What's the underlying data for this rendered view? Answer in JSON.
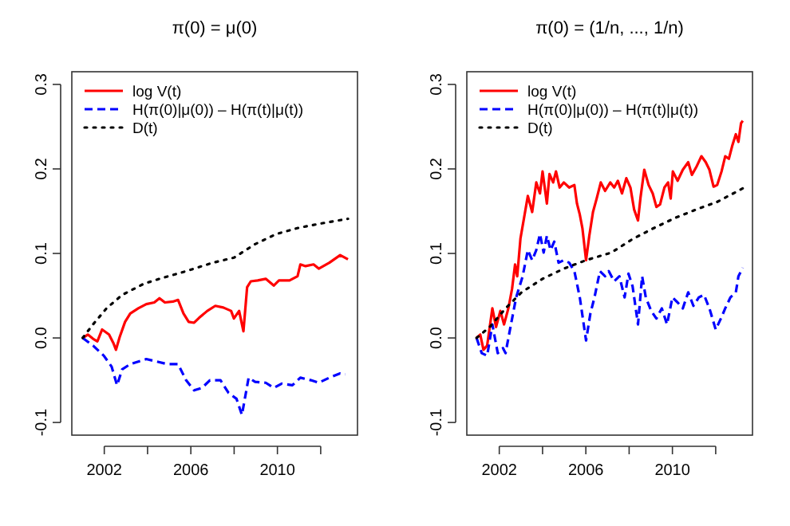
{
  "chart_data": [
    {
      "type": "line",
      "title": "π(0) = μ(0)",
      "xlim": [
        2000.5,
        2013.7
      ],
      "xticks": [
        2002,
        {
          "value": 2004,
          "label": null
        },
        2006,
        {
          "value": 2008,
          "label": null
        },
        2010,
        {
          "value": 2012,
          "label": null
        }
      ],
      "ylim": [
        -0.115,
        0.315
      ],
      "yticks": [
        -0.1,
        {
          "value": 0,
          "label": "0.0"
        },
        0.1,
        0.2,
        0.3
      ],
      "legend": "top left",
      "series": [
        {
          "name": "log V(t)",
          "color": "#ff0000",
          "line_style": "solid",
          "x": [
            2001.0,
            2001.24,
            2001.48,
            2001.68,
            2001.9,
            2002.22,
            2002.42,
            2002.54,
            2002.71,
            2002.96,
            2003.2,
            2003.57,
            2003.94,
            2004.31,
            2004.55,
            2004.8,
            2005.17,
            2005.41,
            2005.66,
            2005.9,
            2006.15,
            2006.39,
            2006.76,
            2007.13,
            2007.5,
            2007.86,
            2007.99,
            2008.23,
            2008.43,
            2008.6,
            2008.77,
            2009.09,
            2009.46,
            2009.83,
            2010.07,
            2010.56,
            2010.93,
            2011.06,
            2011.3,
            2011.67,
            2011.91,
            2012.4,
            2012.9,
            2013.26
          ],
          "values": [
            0,
            0.004,
            -0.001,
            -0.004,
            0.01,
            0.004,
            -0.006,
            -0.014,
            0.001,
            0.019,
            0.029,
            0.035,
            0.04,
            0.042,
            0.047,
            0.042,
            0.043,
            0.045,
            0.029,
            0.019,
            0.018,
            0.024,
            0.032,
            0.038,
            0.036,
            0.032,
            0.023,
            0.032,
            0.008,
            0.06,
            0.067,
            0.068,
            0.07,
            0.062,
            0.068,
            0.068,
            0.073,
            0.087,
            0.085,
            0.087,
            0.082,
            0.089,
            0.098,
            0.093
          ]
        },
        {
          "name": "H(π(0)|μ(0)) – H(π(t)|μ(t))",
          "color": "#0000ff",
          "line_style": "dashed",
          "x": [
            2001.0,
            2001.48,
            2001.98,
            2002.34,
            2002.59,
            2002.83,
            2003.2,
            2003.57,
            2003.94,
            2004.43,
            2004.92,
            2005.41,
            2005.78,
            2006.15,
            2006.52,
            2006.88,
            2007.37,
            2007.74,
            2008.11,
            2008.36,
            2008.67,
            2008.97,
            2009.46,
            2009.83,
            2010.2,
            2010.69,
            2011.06,
            2011.55,
            2011.91,
            2012.4,
            2012.9,
            2013.14
          ],
          "values": [
            0,
            -0.009,
            -0.021,
            -0.034,
            -0.056,
            -0.037,
            -0.031,
            -0.028,
            -0.025,
            -0.028,
            -0.031,
            -0.031,
            -0.05,
            -0.062,
            -0.059,
            -0.05,
            -0.05,
            -0.065,
            -0.072,
            -0.091,
            -0.047,
            -0.052,
            -0.053,
            -0.059,
            -0.054,
            -0.056,
            -0.047,
            -0.05,
            -0.053,
            -0.047,
            -0.042,
            -0.043
          ]
        },
        {
          "name": "D(t)",
          "color": "#000000",
          "line_style": "dotted",
          "x": [
            2001.0,
            2001.48,
            2002.1,
            2002.83,
            2003.82,
            2004.55,
            2005.78,
            2007.01,
            2007.99,
            2008.97,
            2009.95,
            2010.93,
            2011.91,
            2013.26
          ],
          "values": [
            0,
            0.016,
            0.035,
            0.051,
            0.064,
            0.07,
            0.079,
            0.089,
            0.095,
            0.111,
            0.123,
            0.13,
            0.135,
            0.141
          ]
        }
      ]
    },
    {
      "type": "line",
      "title": "π(0) = (1/n, ..., 1/n)",
      "xlim": [
        2000.5,
        2013.7
      ],
      "xticks": [
        2002,
        {
          "value": 2004,
          "label": null
        },
        2006,
        {
          "value": 2008,
          "label": null
        },
        2010,
        {
          "value": 2012,
          "label": null
        }
      ],
      "ylim": [
        -0.115,
        0.315
      ],
      "yticks": [
        -0.1,
        {
          "value": 0,
          "label": "0.0"
        },
        0.1,
        0.2,
        0.3
      ],
      "legend": "top left",
      "series": [
        {
          "name": "log V(t)",
          "color": "#ff0000",
          "line_style": "solid",
          "x": [
            2000.95,
            2001.12,
            2001.27,
            2001.44,
            2001.68,
            2001.85,
            2002.05,
            2002.22,
            2002.42,
            2002.59,
            2002.73,
            2002.83,
            2002.98,
            2003.15,
            2003.32,
            2003.52,
            2003.71,
            2003.88,
            2004.0,
            2004.2,
            2004.32,
            2004.49,
            2004.62,
            2004.79,
            2004.98,
            2005.23,
            2005.47,
            2005.59,
            2005.72,
            2005.84,
            2006.01,
            2006.16,
            2006.33,
            2006.5,
            2006.69,
            2006.89,
            2007.13,
            2007.31,
            2007.48,
            2007.67,
            2007.87,
            2008.06,
            2008.23,
            2008.41,
            2008.53,
            2008.7,
            2008.9,
            2009.09,
            2009.26,
            2009.43,
            2009.63,
            2009.8,
            2009.92,
            2010.02,
            2010.24,
            2010.48,
            2010.73,
            2010.9,
            2011.1,
            2011.34,
            2011.54,
            2011.71,
            2011.9,
            2012.07,
            2012.27,
            2012.44,
            2012.61,
            2012.76,
            2012.93,
            2013.05,
            2013.17,
            2013.25
          ],
          "values": [
            0,
            0.004,
            -0.014,
            -0.009,
            0.035,
            0.013,
            0.032,
            0.016,
            0.035,
            0.058,
            0.087,
            0.073,
            0.118,
            0.143,
            0.168,
            0.149,
            0.184,
            0.171,
            0.197,
            0.159,
            0.194,
            0.184,
            0.197,
            0.178,
            0.184,
            0.178,
            0.181,
            0.159,
            0.146,
            0.13,
            0.092,
            0.121,
            0.149,
            0.165,
            0.184,
            0.174,
            0.184,
            0.178,
            0.186,
            0.171,
            0.189,
            0.178,
            0.152,
            0.139,
            0.167,
            0.199,
            0.181,
            0.171,
            0.155,
            0.158,
            0.178,
            0.184,
            0.165,
            0.197,
            0.186,
            0.199,
            0.208,
            0.193,
            0.202,
            0.215,
            0.208,
            0.199,
            0.179,
            0.181,
            0.197,
            0.215,
            0.212,
            0.227,
            0.241,
            0.232,
            0.254,
            0.257
          ]
        },
        {
          "name": "H(π(0)|μ(0)) – H(π(t)|μ(t))",
          "color": "#0000ff",
          "line_style": "dashed",
          "x": [
            2000.95,
            2001.19,
            2001.44,
            2001.68,
            2001.93,
            2002.17,
            2002.29,
            2002.54,
            2002.78,
            2003.08,
            2003.32,
            2003.52,
            2003.71,
            2003.88,
            2004.05,
            2004.2,
            2004.37,
            2004.54,
            2004.74,
            2004.98,
            2005.23,
            2005.47,
            2005.72,
            2006.01,
            2006.21,
            2006.4,
            2006.65,
            2006.89,
            2007.06,
            2007.31,
            2007.55,
            2007.79,
            2007.97,
            2008.16,
            2008.41,
            2008.6,
            2008.77,
            2009.02,
            2009.26,
            2009.51,
            2009.75,
            2010.0,
            2010.24,
            2010.48,
            2010.73,
            2010.97,
            2011.22,
            2011.46,
            2011.71,
            2012.0,
            2012.24,
            2012.44,
            2012.68,
            2012.93,
            2013.05,
            2013.25
          ],
          "values": [
            0,
            -0.018,
            -0.021,
            0.016,
            -0.018,
            -0.012,
            -0.018,
            0.016,
            0.048,
            0.073,
            0.104,
            0.092,
            0.104,
            0.123,
            0.101,
            0.121,
            0.104,
            0.114,
            0.089,
            0.092,
            0.089,
            0.079,
            0.048,
            -0.003,
            0.029,
            0.048,
            0.079,
            0.073,
            0.079,
            0.067,
            0.073,
            0.048,
            0.076,
            0.061,
            0.016,
            0.073,
            0.048,
            0.032,
            0.023,
            0.035,
            0.016,
            0.048,
            0.042,
            0.035,
            0.054,
            0.038,
            0.048,
            0.051,
            0.035,
            0.01,
            0.023,
            0.035,
            0.048,
            0.054,
            0.073,
            0.083
          ]
        },
        {
          "name": "D(t)",
          "color": "#000000",
          "line_style": "dotted",
          "x": [
            2000.95,
            2001.56,
            2002.29,
            2003.03,
            2004.0,
            2004.98,
            2006.01,
            2007.18,
            2008.16,
            2009.14,
            2010.12,
            2011.1,
            2012.07,
            2013.25
          ],
          "values": [
            0,
            0.013,
            0.035,
            0.054,
            0.07,
            0.082,
            0.092,
            0.101,
            0.117,
            0.13,
            0.142,
            0.152,
            0.161,
            0.177
          ]
        }
      ]
    }
  ]
}
